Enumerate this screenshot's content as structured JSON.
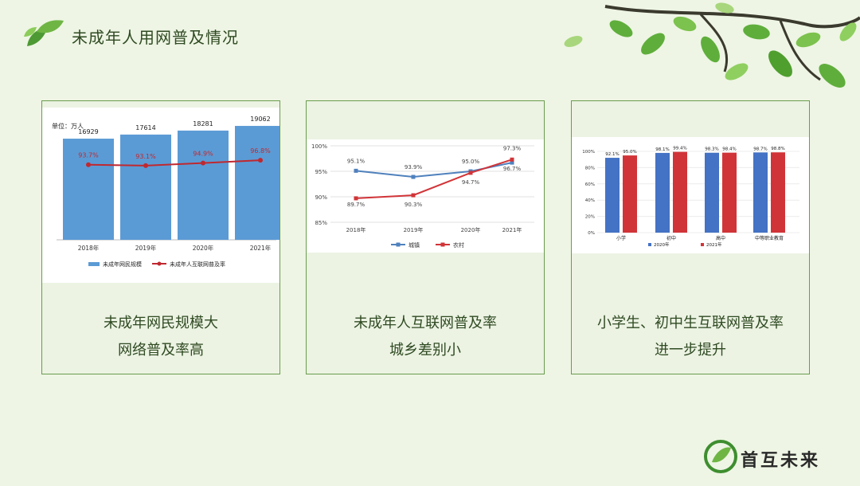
{
  "slide": {
    "title": "未成年人用网普及情况",
    "logo_text": "首互未来",
    "colors": {
      "bg": "#eef5e4",
      "card_border": "#6a9c4e",
      "bar_blue": "#5b9bd5",
      "line_red": "#c0282f",
      "accent_green": "#3e8e2f"
    }
  },
  "cards": [
    {
      "caption_line1": "未成年网民规模大",
      "caption_line2": "网络普及率高",
      "chart_data": {
        "type": "bar",
        "unit_label": "单位：万人",
        "categories": [
          "2018年",
          "2019年",
          "2020年",
          "2021年"
        ],
        "series": [
          {
            "name": "未成年网民规模",
            "kind": "bar",
            "values": [
              16929,
              17614,
              18281,
              19062
            ],
            "labels": [
              "16929",
              "17614",
              "18281",
              "19062"
            ]
          },
          {
            "name": "未成年人互联网普及率",
            "kind": "line",
            "values": [
              93.7,
              93.1,
              94.9,
              96.8
            ],
            "labels": [
              "93.7%",
              "93.1%",
              "94.9%",
              "96.8%"
            ]
          }
        ]
      }
    },
    {
      "caption_line1": "未成年人互联网普及率",
      "caption_line2": "城乡差别小",
      "chart_data": {
        "type": "line",
        "categories": [
          "2018年",
          "2019年",
          "2020年",
          "2021年"
        ],
        "yticks": [
          "100%",
          "95%",
          "90%",
          "85%"
        ],
        "ylim": [
          85,
          100
        ],
        "series": [
          {
            "name": "城镇",
            "values": [
              95.1,
              93.9,
              95.0,
              96.7
            ],
            "labels": [
              "95.1%",
              "93.9%",
              "95.0%",
              "96.7%"
            ]
          },
          {
            "name": "农村",
            "values": [
              89.7,
              90.3,
              94.7,
              97.3
            ],
            "labels": [
              "89.7%",
              "90.3%",
              "94.7%",
              "97.3%"
            ]
          }
        ]
      }
    },
    {
      "caption_line1": "小学生、初中生互联网普及率",
      "caption_line2": "进一步提升",
      "chart_data": {
        "type": "bar",
        "categories": [
          "小学",
          "初中",
          "高中",
          "中等职业教育"
        ],
        "yticks": [
          "100%",
          "80%",
          "60%",
          "40%",
          "20%",
          "0%"
        ],
        "ylim": [
          0,
          100
        ],
        "series": [
          {
            "name": "2020年",
            "values": [
              92.1,
              98.1,
              98.3,
              98.7
            ],
            "labels": [
              "92.1%",
              "98.1%",
              "98.3%",
              "98.7%"
            ]
          },
          {
            "name": "2021年",
            "values": [
              95.0,
              99.4,
              98.4,
              98.8
            ],
            "labels": [
              "95.0%",
              "99.4%",
              "98.4%",
              "98.8%"
            ]
          }
        ]
      }
    }
  ]
}
